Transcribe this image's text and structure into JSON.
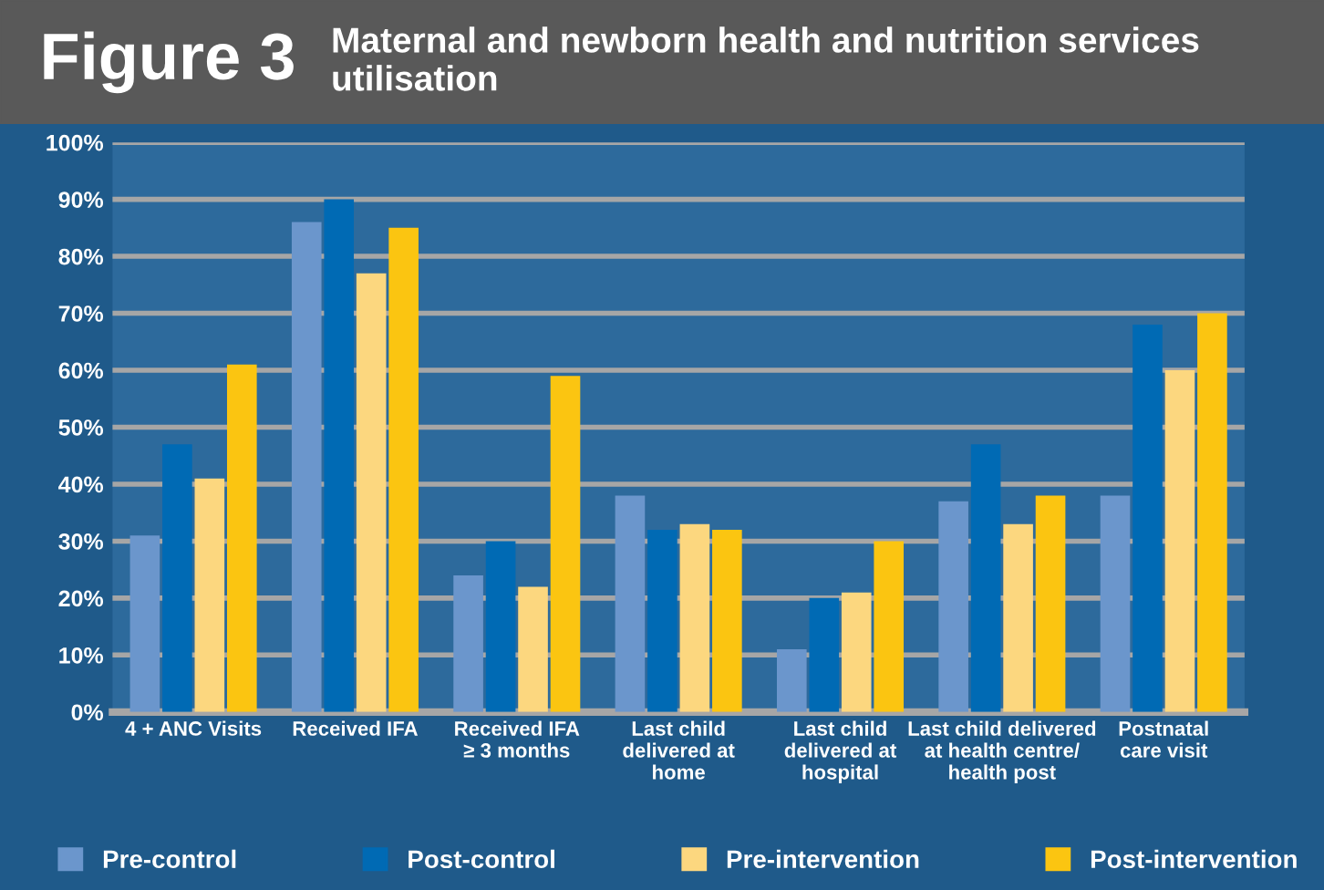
{
  "chart_data": {
    "type": "bar",
    "title": "Maternal and newborn health and nutrition services utilisation",
    "annotations": [
      "Figure 3"
    ],
    "categories": [
      "4 + ANC Visits",
      "Received IFA",
      "Received IFA\n≥ 3 months",
      "Last child\ndelivered at\nhome",
      "Last child\ndelivered at\nhospital",
      "Last child delivered\nat health centre/\nhealth post",
      "Postnatal\ncare visit"
    ],
    "series": [
      {
        "name": "Pre-control",
        "color": "#6b96cc",
        "values": [
          31,
          86,
          24,
          38,
          11,
          37,
          38
        ]
      },
      {
        "name": "Post-control",
        "color": "#006ab4",
        "values": [
          47,
          90,
          30,
          32,
          20,
          47,
          68
        ]
      },
      {
        "name": "Pre-intervention",
        "color": "#fcd77f",
        "values": [
          41,
          77,
          22,
          33,
          21,
          33,
          60
        ]
      },
      {
        "name": "Post-intervention",
        "color": "#fbc511",
        "values": [
          61,
          85,
          59,
          32,
          30,
          38,
          70
        ]
      }
    ],
    "ylim": [
      0,
      100
    ],
    "yticks": [
      {
        "value": 0,
        "label": "0%"
      },
      {
        "value": 10,
        "label": "10%"
      },
      {
        "value": 20,
        "label": "20%"
      },
      {
        "value": 30,
        "label": "30%"
      },
      {
        "value": 40,
        "label": "40%"
      },
      {
        "value": 50,
        "label": "50%"
      },
      {
        "value": 60,
        "label": "60%"
      },
      {
        "value": 70,
        "label": "70%"
      },
      {
        "value": 80,
        "label": "80%"
      },
      {
        "value": 90,
        "label": "90%"
      },
      {
        "value": 100,
        "label": "100%"
      }
    ],
    "grid": "y",
    "legend": "bottom"
  }
}
